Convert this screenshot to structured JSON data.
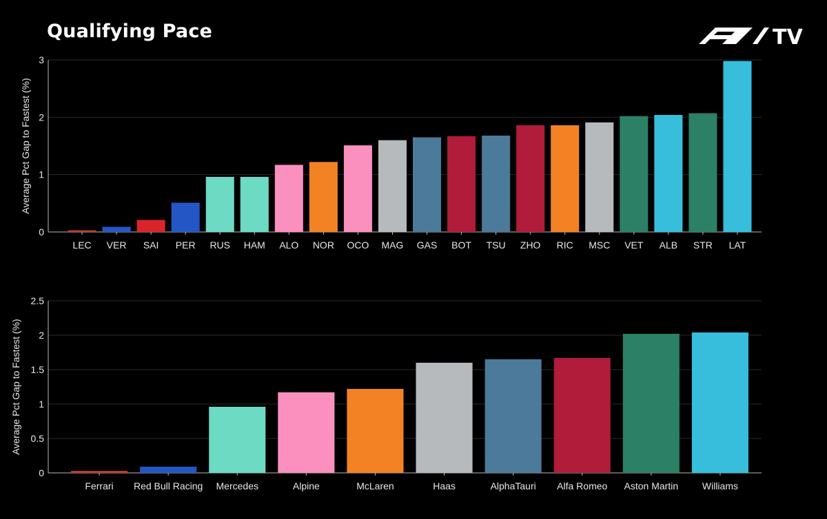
{
  "header": {
    "title": "Qualifying Pace",
    "logo_text": "F1 TV"
  },
  "chart_data": [
    {
      "type": "bar",
      "ylabel": "Average Pct Gap to Fastest (%)",
      "ylim": [
        0,
        3
      ],
      "yticks": [
        0,
        1,
        2,
        3
      ],
      "ytick_labels": [
        "0",
        "1",
        "2",
        "3"
      ],
      "grid": true,
      "categories": [
        "LEC",
        "VER",
        "SAI",
        "PER",
        "RUS",
        "HAM",
        "ALO",
        "NOR",
        "OCO",
        "MAG",
        "GAS",
        "BOT",
        "TSU",
        "ZHO",
        "RIC",
        "MSC",
        "VET",
        "ALB",
        "STR",
        "LAT"
      ],
      "values": [
        0.03,
        0.09,
        0.21,
        0.51,
        0.96,
        0.96,
        1.17,
        1.22,
        1.51,
        1.6,
        1.65,
        1.67,
        1.68,
        1.86,
        1.86,
        1.91,
        2.02,
        2.04,
        2.07,
        2.98
      ],
      "colors": [
        "#c0392b",
        "#2457c5",
        "#d9252a",
        "#2457c5",
        "#6ddac3",
        "#6ddac3",
        "#fb8fbd",
        "#f38224",
        "#fb8fbd",
        "#b6babd",
        "#4b7a9a",
        "#b01c3a",
        "#4b7a9a",
        "#b01c3a",
        "#f38224",
        "#b6babd",
        "#2b8066",
        "#37bedd",
        "#2b8066",
        "#37bedd"
      ]
    },
    {
      "type": "bar",
      "ylabel": "Average Pct Gap to Fastest (%)",
      "ylim": [
        0,
        2.5
      ],
      "yticks": [
        0,
        0.5,
        1,
        1.5,
        2,
        2.5
      ],
      "ytick_labels": [
        "0",
        "0.5",
        "1",
        "1.5",
        "2",
        "2.5"
      ],
      "grid": true,
      "categories": [
        "Ferrari",
        "Red Bull Racing",
        "Mercedes",
        "Alpine",
        "McLaren",
        "Haas",
        "AlphaTauri",
        "Alfa Romeo",
        "Aston Martin",
        "Williams"
      ],
      "values": [
        0.03,
        0.09,
        0.96,
        1.17,
        1.22,
        1.6,
        1.65,
        1.67,
        2.02,
        2.04
      ],
      "colors": [
        "#c0392b",
        "#2457c5",
        "#6ddac3",
        "#fb8fbd",
        "#f38224",
        "#b6babd",
        "#4b7a9a",
        "#b01c3a",
        "#2b8066",
        "#37bedd"
      ]
    }
  ]
}
